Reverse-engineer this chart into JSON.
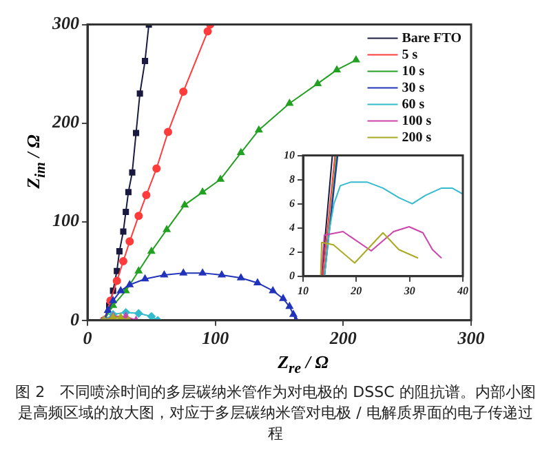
{
  "chart_data": [
    {
      "type": "line",
      "xlabel": "Z$_{re}$ / Ω",
      "ylabel": "Z$_{im}$ / Ω",
      "xlim": [
        0,
        300
      ],
      "ylim": [
        0,
        300
      ],
      "xticks": [
        0,
        100,
        200,
        300
      ],
      "yticks": [
        0,
        100,
        200,
        300
      ],
      "grid": false,
      "legend": "top right",
      "annotations": [
        "图 2　不同喷涂时间的多层碳纳米管作为对电极的 DSSC 的阻抗谱。内部小图是高频区域的放大图，对应于多层碳纳米管对电极 / 电解质界面的电子传递过程"
      ],
      "series": [
        {
          "name": "Bare FTO",
          "color": "#1a1a40",
          "marker": "square",
          "x": [
            13,
            17,
            20,
            23,
            25,
            28,
            30,
            32,
            35,
            38,
            41,
            45,
            48
          ],
          "values": [
            0,
            15,
            30,
            50,
            70,
            90,
            110,
            130,
            150,
            190,
            230,
            263,
            300
          ]
        },
        {
          "name": "5 s",
          "color": "#ff3b3b",
          "marker": "circle",
          "x": [
            13,
            18,
            23,
            28,
            33,
            40,
            46,
            54,
            63,
            75,
            94,
            96
          ],
          "values": [
            0,
            20,
            40,
            60,
            80,
            106,
            127,
            154,
            191,
            232,
            293,
            300
          ]
        },
        {
          "name": "10 s",
          "color": "#22a022",
          "marker": "triangle",
          "x": [
            13,
            20,
            30,
            40,
            50,
            62,
            76,
            90,
            104,
            120,
            134,
            158,
            180,
            195,
            210
          ],
          "values": [
            0,
            15,
            30,
            50,
            70,
            92,
            117,
            130,
            143,
            170,
            193,
            220,
            240,
            254,
            264
          ]
        },
        {
          "name": "30 s",
          "color": "#2233bb",
          "marker": "triangle",
          "x": [
            13,
            16,
            20,
            26,
            33,
            45,
            60,
            75,
            90,
            105,
            120,
            133,
            145,
            153,
            158,
            161,
            163
          ],
          "values": [
            0,
            10,
            20,
            30,
            36,
            42,
            46,
            48,
            48,
            46,
            43,
            38,
            30,
            22,
            14,
            6,
            0
          ]
        },
        {
          "name": "60 s",
          "color": "#33bbcc",
          "marker": "diamond",
          "x": [
            13,
            20,
            30,
            40,
            50,
            55
          ],
          "values": [
            0,
            6,
            8,
            7,
            4,
            0
          ]
        },
        {
          "name": "100 s",
          "color": "#cc44aa",
          "marker": "triangle",
          "x": [
            13,
            20,
            30,
            38
          ],
          "values": [
            0,
            4,
            4,
            0
          ]
        },
        {
          "name": "200 s",
          "color": "#aaaa22",
          "marker": "triangle",
          "x": [
            13,
            20,
            26,
            32
          ],
          "values": [
            0,
            3,
            3,
            0
          ]
        }
      ]
    },
    {
      "type": "line",
      "xlim": [
        10,
        40
      ],
      "ylim": [
        0,
        10
      ],
      "xticks": [
        10,
        20,
        30,
        40
      ],
      "yticks": [
        0,
        2,
        4,
        6,
        8,
        10
      ],
      "grid": false,
      "legend": false,
      "series": [
        {
          "color": "#1a1a40",
          "marker": "none",
          "x": [
            13.5,
            15.5
          ],
          "values": [
            0,
            10
          ]
        },
        {
          "color": "#ff3b3b",
          "marker": "none",
          "x": [
            13.7,
            16
          ],
          "values": [
            0,
            10
          ]
        },
        {
          "color": "#22a022",
          "marker": "none",
          "x": [
            14,
            16.3
          ],
          "values": [
            0,
            10
          ]
        },
        {
          "color": "#2233bb",
          "marker": "none",
          "x": [
            14,
            16.5
          ],
          "values": [
            0,
            10
          ]
        },
        {
          "color": "#33bbcc",
          "marker": "none",
          "x": [
            14,
            14.5,
            15,
            15.8,
            17,
            19,
            22,
            25,
            28,
            30.5,
            33,
            36,
            38,
            40
          ],
          "values": [
            0,
            2,
            4,
            6,
            7.5,
            7.8,
            7.8,
            7.3,
            6.5,
            6,
            6.7,
            7.3,
            7.3,
            6.8
          ]
        },
        {
          "color": "#cc44aa",
          "marker": "none",
          "x": [
            13.4,
            14,
            17.5,
            22.8,
            27,
            29.9,
            32.5,
            34.3,
            36
          ],
          "values": [
            0,
            3.4,
            3.7,
            2.1,
            3.7,
            4.1,
            3.6,
            2.2,
            1.5
          ]
        },
        {
          "color": "#aaaa22",
          "marker": "none",
          "x": [
            13.3,
            13.5,
            15.7,
            19.7,
            25,
            28,
            31.6
          ],
          "values": [
            0,
            2.8,
            2.6,
            1.1,
            3.6,
            2.2,
            1.5
          ]
        }
      ]
    }
  ]
}
